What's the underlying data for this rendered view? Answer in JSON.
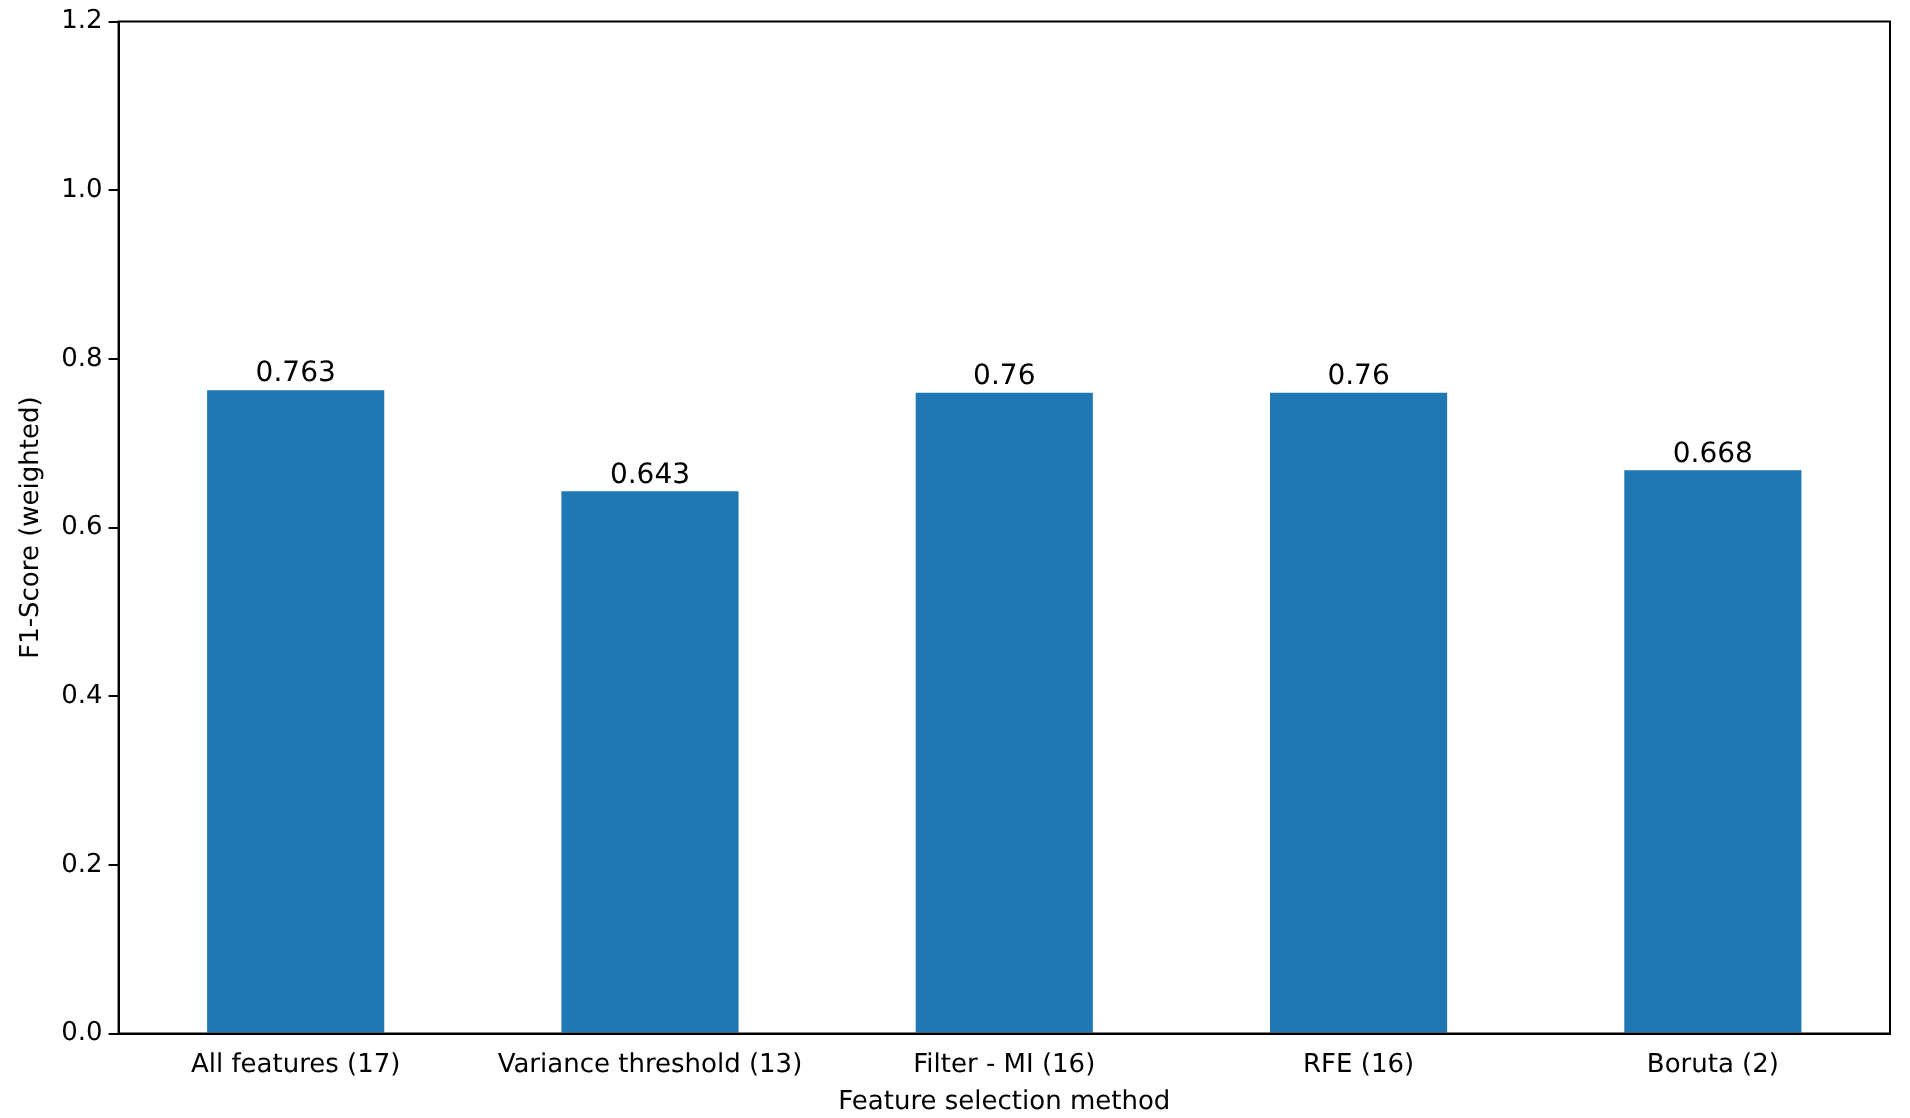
{
  "chart_data": {
    "type": "bar",
    "categories": [
      "All features (17)",
      "Variance threshold (13)",
      "Filter - MI (16)",
      "RFE (16)",
      "Boruta (2)"
    ],
    "values": [
      0.763,
      0.643,
      0.76,
      0.76,
      0.668
    ],
    "color": "#1f77b4",
    "xlabel": "Feature selection method",
    "ylabel": "F1-Score (weighted)",
    "ylim": [
      0,
      1.2
    ],
    "yticks": [
      {
        "value": 0,
        "label": "0.0"
      },
      {
        "value": 0.2,
        "label": "0.2"
      },
      {
        "value": 0.4,
        "label": "0.4"
      },
      {
        "value": 0.6,
        "label": "0.6"
      },
      {
        "value": 0.8,
        "label": "0.8"
      },
      {
        "value": 1.0,
        "label": "1.0"
      },
      {
        "value": 1.2,
        "label": "1.2"
      }
    ],
    "data_labels": true,
    "grid": false,
    "legend": false
  }
}
